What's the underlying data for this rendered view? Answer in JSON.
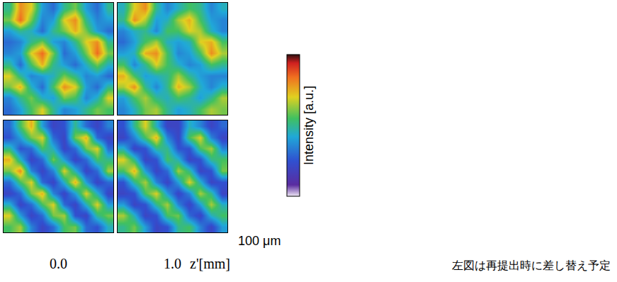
{
  "chart_data": {
    "type": "heatmap",
    "tick_labels": false,
    "zlim": [
      0,
      1
    ],
    "colorbar_title": "Intensity [a.u.]",
    "columns": [
      "0.0",
      "1.0"
    ],
    "x_label": "z'[mm]",
    "scale_label": "100 μm",
    "annotations": [
      "左図は再提出時に差し替え予定"
    ],
    "panels": [
      [
        [
          [
            0.5,
            0.8,
            0.7,
            0.4,
            0.3,
            0.5,
            0.6,
            0.4,
            0.3,
            0.5
          ],
          [
            0.6,
            0.85,
            0.6,
            0.35,
            0.4,
            0.7,
            0.8,
            0.5,
            0.35,
            0.4
          ],
          [
            0.4,
            0.5,
            0.45,
            0.3,
            0.5,
            0.6,
            0.75,
            0.6,
            0.4,
            0.3
          ],
          [
            0.3,
            0.35,
            0.5,
            0.6,
            0.4,
            0.35,
            0.5,
            0.7,
            0.8,
            0.5
          ],
          [
            0.35,
            0.4,
            0.7,
            0.85,
            0.6,
            0.3,
            0.4,
            0.6,
            0.85,
            0.6
          ],
          [
            0.5,
            0.3,
            0.55,
            0.75,
            0.5,
            0.4,
            0.3,
            0.45,
            0.6,
            0.45
          ],
          [
            0.7,
            0.5,
            0.35,
            0.4,
            0.45,
            0.6,
            0.5,
            0.35,
            0.4,
            0.3
          ],
          [
            0.6,
            0.75,
            0.45,
            0.3,
            0.55,
            0.8,
            0.7,
            0.4,
            0.3,
            0.5
          ],
          [
            0.35,
            0.5,
            0.6,
            0.45,
            0.4,
            0.6,
            0.55,
            0.35,
            0.45,
            0.7
          ],
          [
            0.3,
            0.4,
            0.55,
            0.7,
            0.5,
            0.35,
            0.4,
            0.5,
            0.6,
            0.55
          ]
        ],
        [
          [
            0.45,
            0.7,
            0.8,
            0.5,
            0.35,
            0.45,
            0.55,
            0.5,
            0.35,
            0.45
          ],
          [
            0.5,
            0.8,
            0.65,
            0.4,
            0.45,
            0.65,
            0.75,
            0.55,
            0.4,
            0.35
          ],
          [
            0.35,
            0.45,
            0.5,
            0.35,
            0.55,
            0.55,
            0.7,
            0.65,
            0.45,
            0.35
          ],
          [
            0.3,
            0.4,
            0.55,
            0.65,
            0.45,
            0.4,
            0.45,
            0.7,
            0.75,
            0.55
          ],
          [
            0.4,
            0.45,
            0.75,
            0.8,
            0.55,
            0.35,
            0.4,
            0.55,
            0.8,
            0.65
          ],
          [
            0.55,
            0.35,
            0.5,
            0.7,
            0.55,
            0.45,
            0.35,
            0.4,
            0.55,
            0.5
          ],
          [
            0.75,
            0.55,
            0.4,
            0.45,
            0.5,
            0.65,
            0.5,
            0.4,
            0.35,
            0.35
          ],
          [
            0.65,
            0.8,
            0.5,
            0.35,
            0.5,
            0.75,
            0.65,
            0.45,
            0.35,
            0.45
          ],
          [
            0.4,
            0.55,
            0.65,
            0.5,
            0.45,
            0.55,
            0.5,
            0.4,
            0.5,
            0.65
          ],
          [
            0.35,
            0.45,
            0.6,
            0.65,
            0.5,
            0.4,
            0.45,
            0.55,
            0.65,
            0.6
          ]
        ]
      ],
      [
        [
          [
            0.3,
            0.55,
            0.75,
            0.4,
            0.2,
            0.25,
            0.5,
            0.3,
            0.2,
            0.35
          ],
          [
            0.25,
            0.4,
            0.6,
            0.7,
            0.3,
            0.2,
            0.6,
            0.75,
            0.3,
            0.2
          ],
          [
            0.5,
            0.25,
            0.3,
            0.55,
            0.45,
            0.2,
            0.3,
            0.6,
            0.7,
            0.3
          ],
          [
            0.75,
            0.45,
            0.2,
            0.3,
            0.6,
            0.4,
            0.2,
            0.3,
            0.55,
            0.5
          ],
          [
            0.6,
            0.8,
            0.35,
            0.2,
            0.35,
            0.7,
            0.45,
            0.2,
            0.3,
            0.65
          ],
          [
            0.3,
            0.55,
            0.7,
            0.3,
            0.2,
            0.45,
            0.75,
            0.4,
            0.2,
            0.3
          ],
          [
            0.2,
            0.3,
            0.6,
            0.75,
            0.35,
            0.2,
            0.4,
            0.7,
            0.45,
            0.2
          ],
          [
            0.45,
            0.2,
            0.3,
            0.55,
            0.7,
            0.3,
            0.2,
            0.45,
            0.7,
            0.4
          ],
          [
            0.7,
            0.4,
            0.2,
            0.3,
            0.6,
            0.65,
            0.25,
            0.2,
            0.5,
            0.6
          ],
          [
            0.55,
            0.65,
            0.35,
            0.2,
            0.3,
            0.55,
            0.6,
            0.3,
            0.25,
            0.45
          ]
        ],
        [
          [
            0.25,
            0.5,
            0.7,
            0.45,
            0.2,
            0.2,
            0.45,
            0.35,
            0.2,
            0.3
          ],
          [
            0.2,
            0.35,
            0.55,
            0.75,
            0.35,
            0.2,
            0.55,
            0.7,
            0.35,
            0.2
          ],
          [
            0.45,
            0.2,
            0.25,
            0.5,
            0.5,
            0.25,
            0.25,
            0.55,
            0.65,
            0.35
          ],
          [
            0.7,
            0.5,
            0.2,
            0.25,
            0.55,
            0.45,
            0.2,
            0.25,
            0.5,
            0.55
          ],
          [
            0.55,
            0.75,
            0.4,
            0.2,
            0.3,
            0.65,
            0.5,
            0.2,
            0.25,
            0.6
          ],
          [
            0.25,
            0.5,
            0.65,
            0.35,
            0.2,
            0.4,
            0.7,
            0.45,
            0.2,
            0.25
          ],
          [
            0.2,
            0.25,
            0.55,
            0.7,
            0.4,
            0.2,
            0.35,
            0.65,
            0.5,
            0.2
          ],
          [
            0.4,
            0.2,
            0.25,
            0.5,
            0.65,
            0.35,
            0.2,
            0.4,
            0.65,
            0.45
          ],
          [
            0.65,
            0.45,
            0.2,
            0.25,
            0.55,
            0.6,
            0.3,
            0.2,
            0.45,
            0.55
          ],
          [
            0.5,
            0.6,
            0.4,
            0.2,
            0.25,
            0.5,
            0.55,
            0.35,
            0.2,
            0.4
          ]
        ]
      ]
    ]
  }
}
